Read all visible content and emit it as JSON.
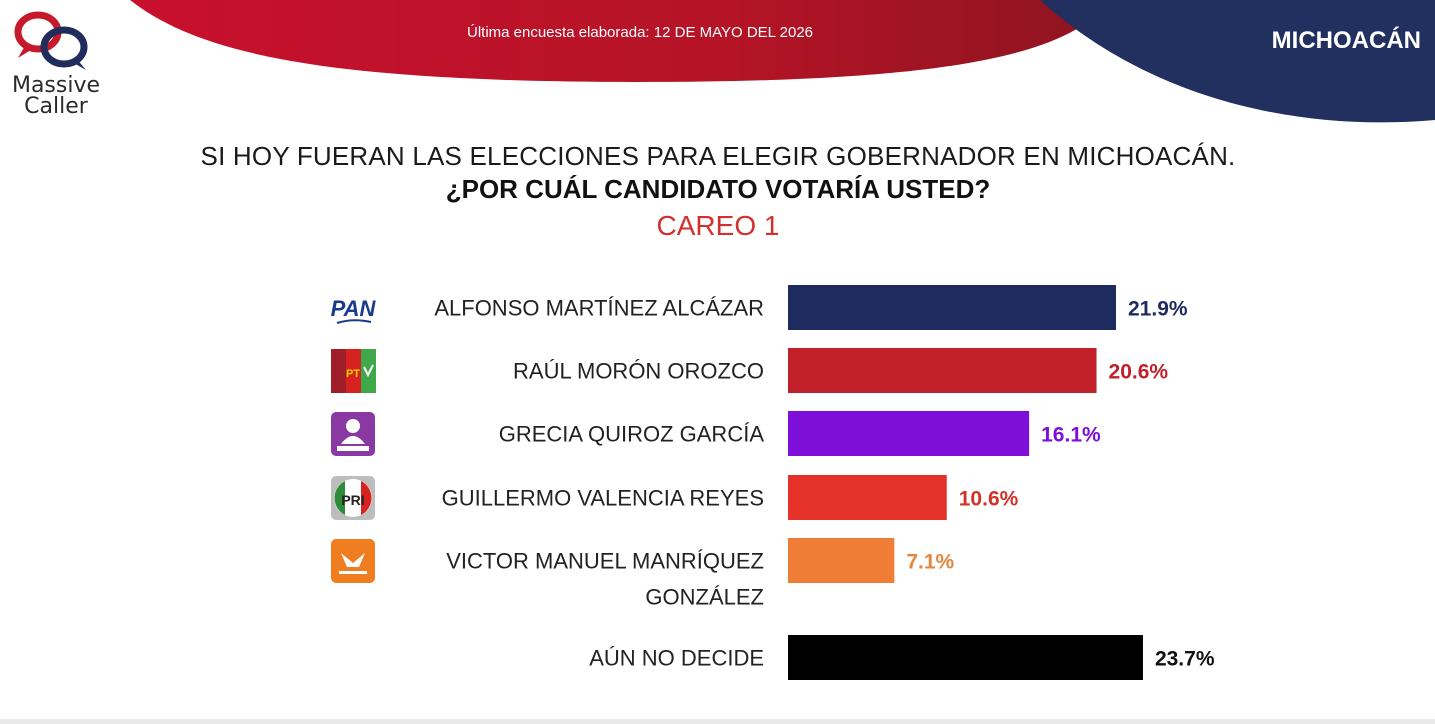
{
  "header": {
    "logo_line1": "Massive",
    "logo_line2": "Caller",
    "survey_date": "Última encuesta elaborada: 12 DE MAYO DEL 2026",
    "region": "MICHOACÁN",
    "colors": {
      "red": "#b71c24",
      "navy": "#1f2c5c"
    }
  },
  "question": {
    "line1": "SI HOY FUERAN LAS ELECCIONES PARA ELEGIR GOBERNADOR EN MICHOACÁN.",
    "line2": "¿POR CUÁL CANDIDATO VOTARÍA USTED?",
    "line3": "CAREO 1"
  },
  "chart_data": {
    "type": "bar",
    "orientation": "horizontal",
    "categories": [
      "ALFONSO MARTÍNEZ ALCÁZAR",
      "RAÚL MORÓN OROZCO",
      "GRECIA QUIROZ GARCÍA",
      "GUILLERMO VALENCIA REYES",
      "VICTOR MANUEL MANRÍQUEZ GONZÁLEZ",
      "AÚN NO DECIDE"
    ],
    "values": [
      21.9,
      20.6,
      16.1,
      10.6,
      7.1,
      23.7
    ],
    "value_labels": [
      "21.9%",
      "20.6%",
      "16.1%",
      "10.6%",
      "7.1%",
      "23.7%"
    ],
    "colors": [
      "#1f2a5e",
      "#c1202a",
      "#7e0fd8",
      "#e4322b",
      "#ef7d36",
      "#000000"
    ],
    "label_colors": [
      "#1f2a5e",
      "#c1202a",
      "#7e0fd8",
      "#d33228",
      "#e5863e",
      "#111111"
    ],
    "party_icons": [
      {
        "name": "pan-logo-icon",
        "text": "PAN"
      },
      {
        "name": "morena-pt-verde-logo-icon",
        "text": "PT"
      },
      {
        "name": "candidatura-independiente-logo-icon",
        "text": ""
      },
      {
        "name": "pri-logo-icon",
        "text": "PRI"
      },
      {
        "name": "movimiento-ciudadano-logo-icon",
        "text": ""
      },
      null
    ],
    "xlim": [
      0,
      25
    ]
  }
}
